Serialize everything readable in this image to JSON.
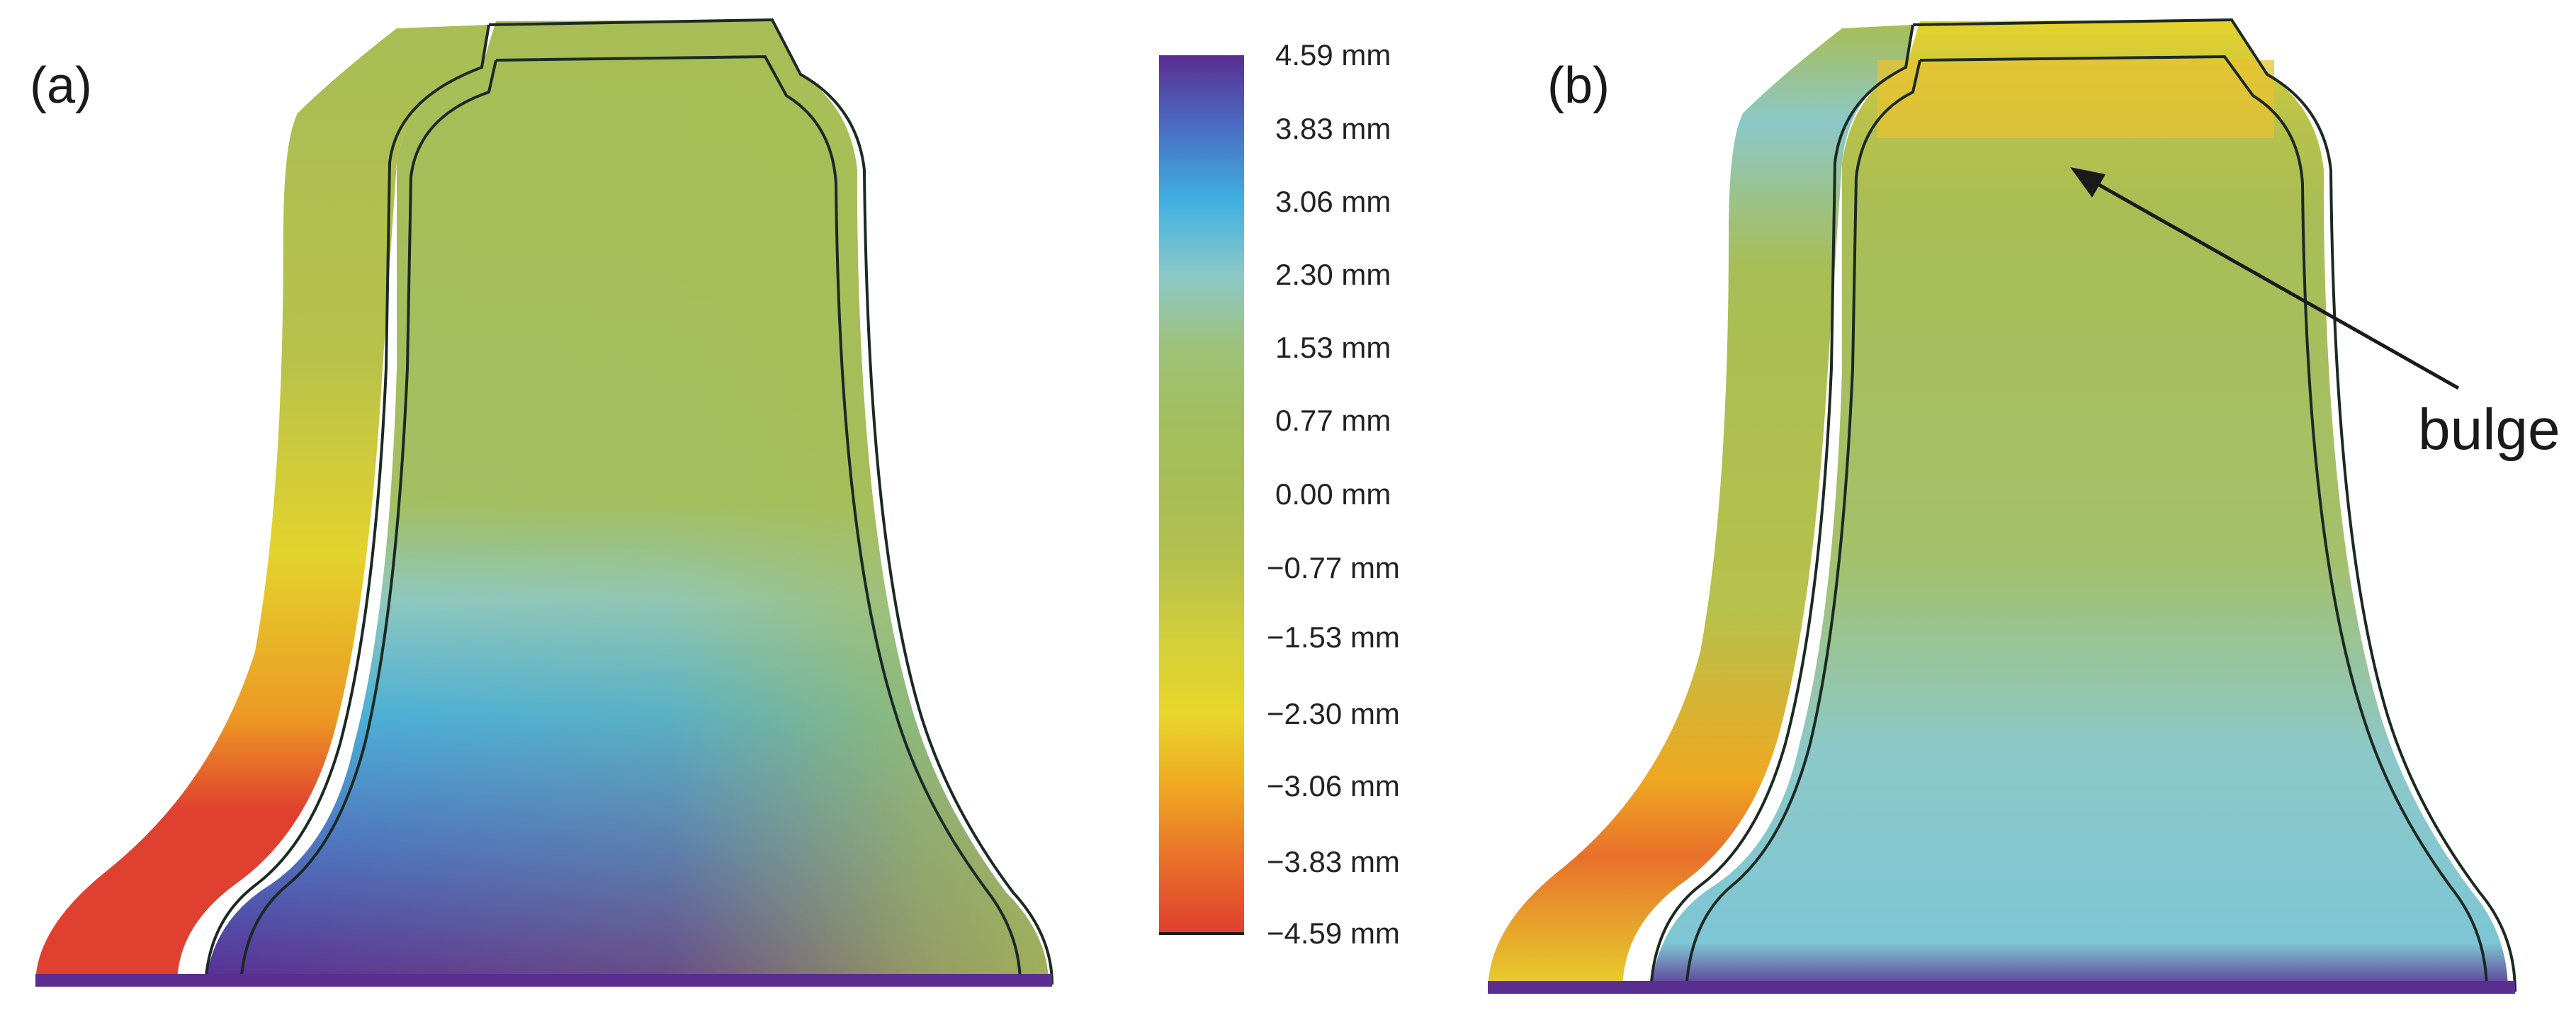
{
  "panels": [
    {
      "label": "(a)"
    },
    {
      "label": "(b)",
      "annotation": "bulge"
    }
  ],
  "colorbar": {
    "unit": "mm",
    "ticks": [
      "4.59 mm",
      "3.83 mm",
      "3.06 mm",
      "2.30 mm",
      "1.53 mm",
      "0.77 mm",
      "0.00 mm",
      "−0.77 mm",
      "−1.53 mm",
      "−2.30 mm",
      "−3.06 mm",
      "−3.83 mm",
      "−4.59 mm"
    ],
    "colors": [
      "#5a2d91",
      "#4a6fc4",
      "#3fb0e0",
      "#8cc8c8",
      "#9ec27a",
      "#a2be5c",
      "#a8bd55",
      "#b6c24c",
      "#d4cf3a",
      "#e8d62a",
      "#eea822",
      "#e8702a",
      "#e04030"
    ]
  }
}
